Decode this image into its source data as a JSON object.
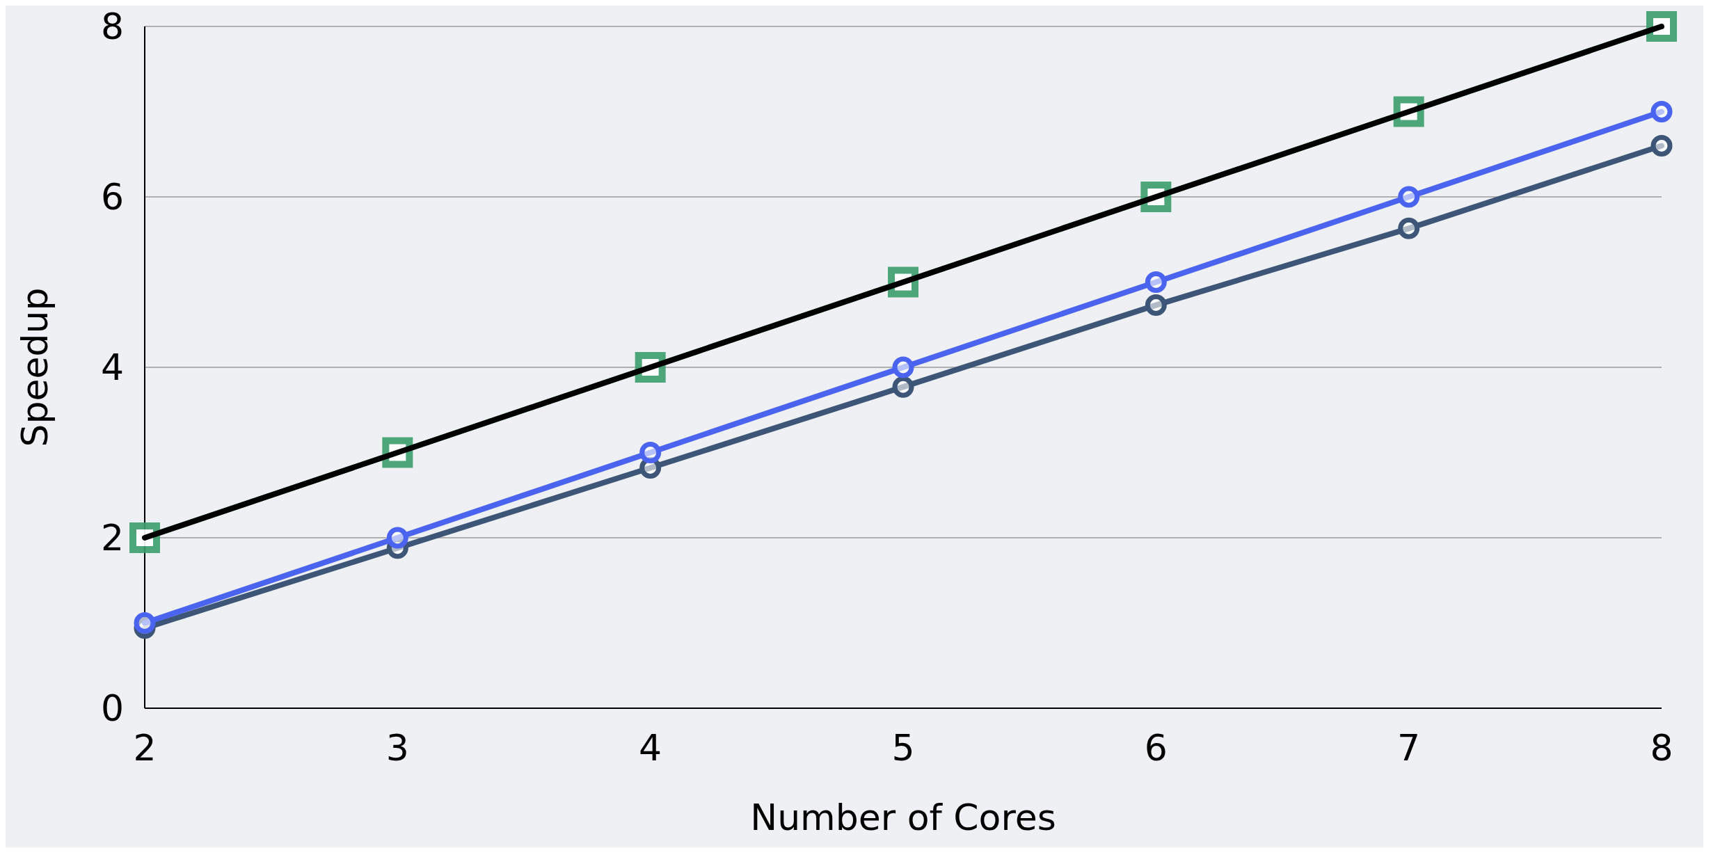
{
  "chart_data": {
    "type": "line",
    "xlabel": "Number of Cores",
    "ylabel": "Speedup",
    "x": [
      2,
      3,
      4,
      5,
      6,
      7,
      8
    ],
    "xlim": [
      2,
      8
    ],
    "xticks": [
      2,
      3,
      4,
      5,
      6,
      7,
      8
    ],
    "ylim": [
      0,
      8
    ],
    "yticks": [
      0,
      2,
      4,
      6,
      8
    ],
    "grid": "y",
    "series": [
      {
        "color": "#3c9e6c",
        "marker": "square",
        "values": [
          2,
          3,
          4,
          5,
          6,
          7,
          8
        ]
      },
      {
        "color": "#3d5577",
        "marker": "circle",
        "values": [
          0.94,
          1.88,
          2.82,
          3.77,
          4.73,
          5.63,
          6.6
        ]
      },
      {
        "color": "#4a64f0",
        "marker": "circle",
        "values": [
          1,
          2,
          3,
          4,
          5,
          6,
          7
        ]
      },
      {
        "color": "#000000",
        "marker": "none",
        "x": [
          2,
          8
        ],
        "values": [
          2,
          8
        ]
      }
    ]
  }
}
